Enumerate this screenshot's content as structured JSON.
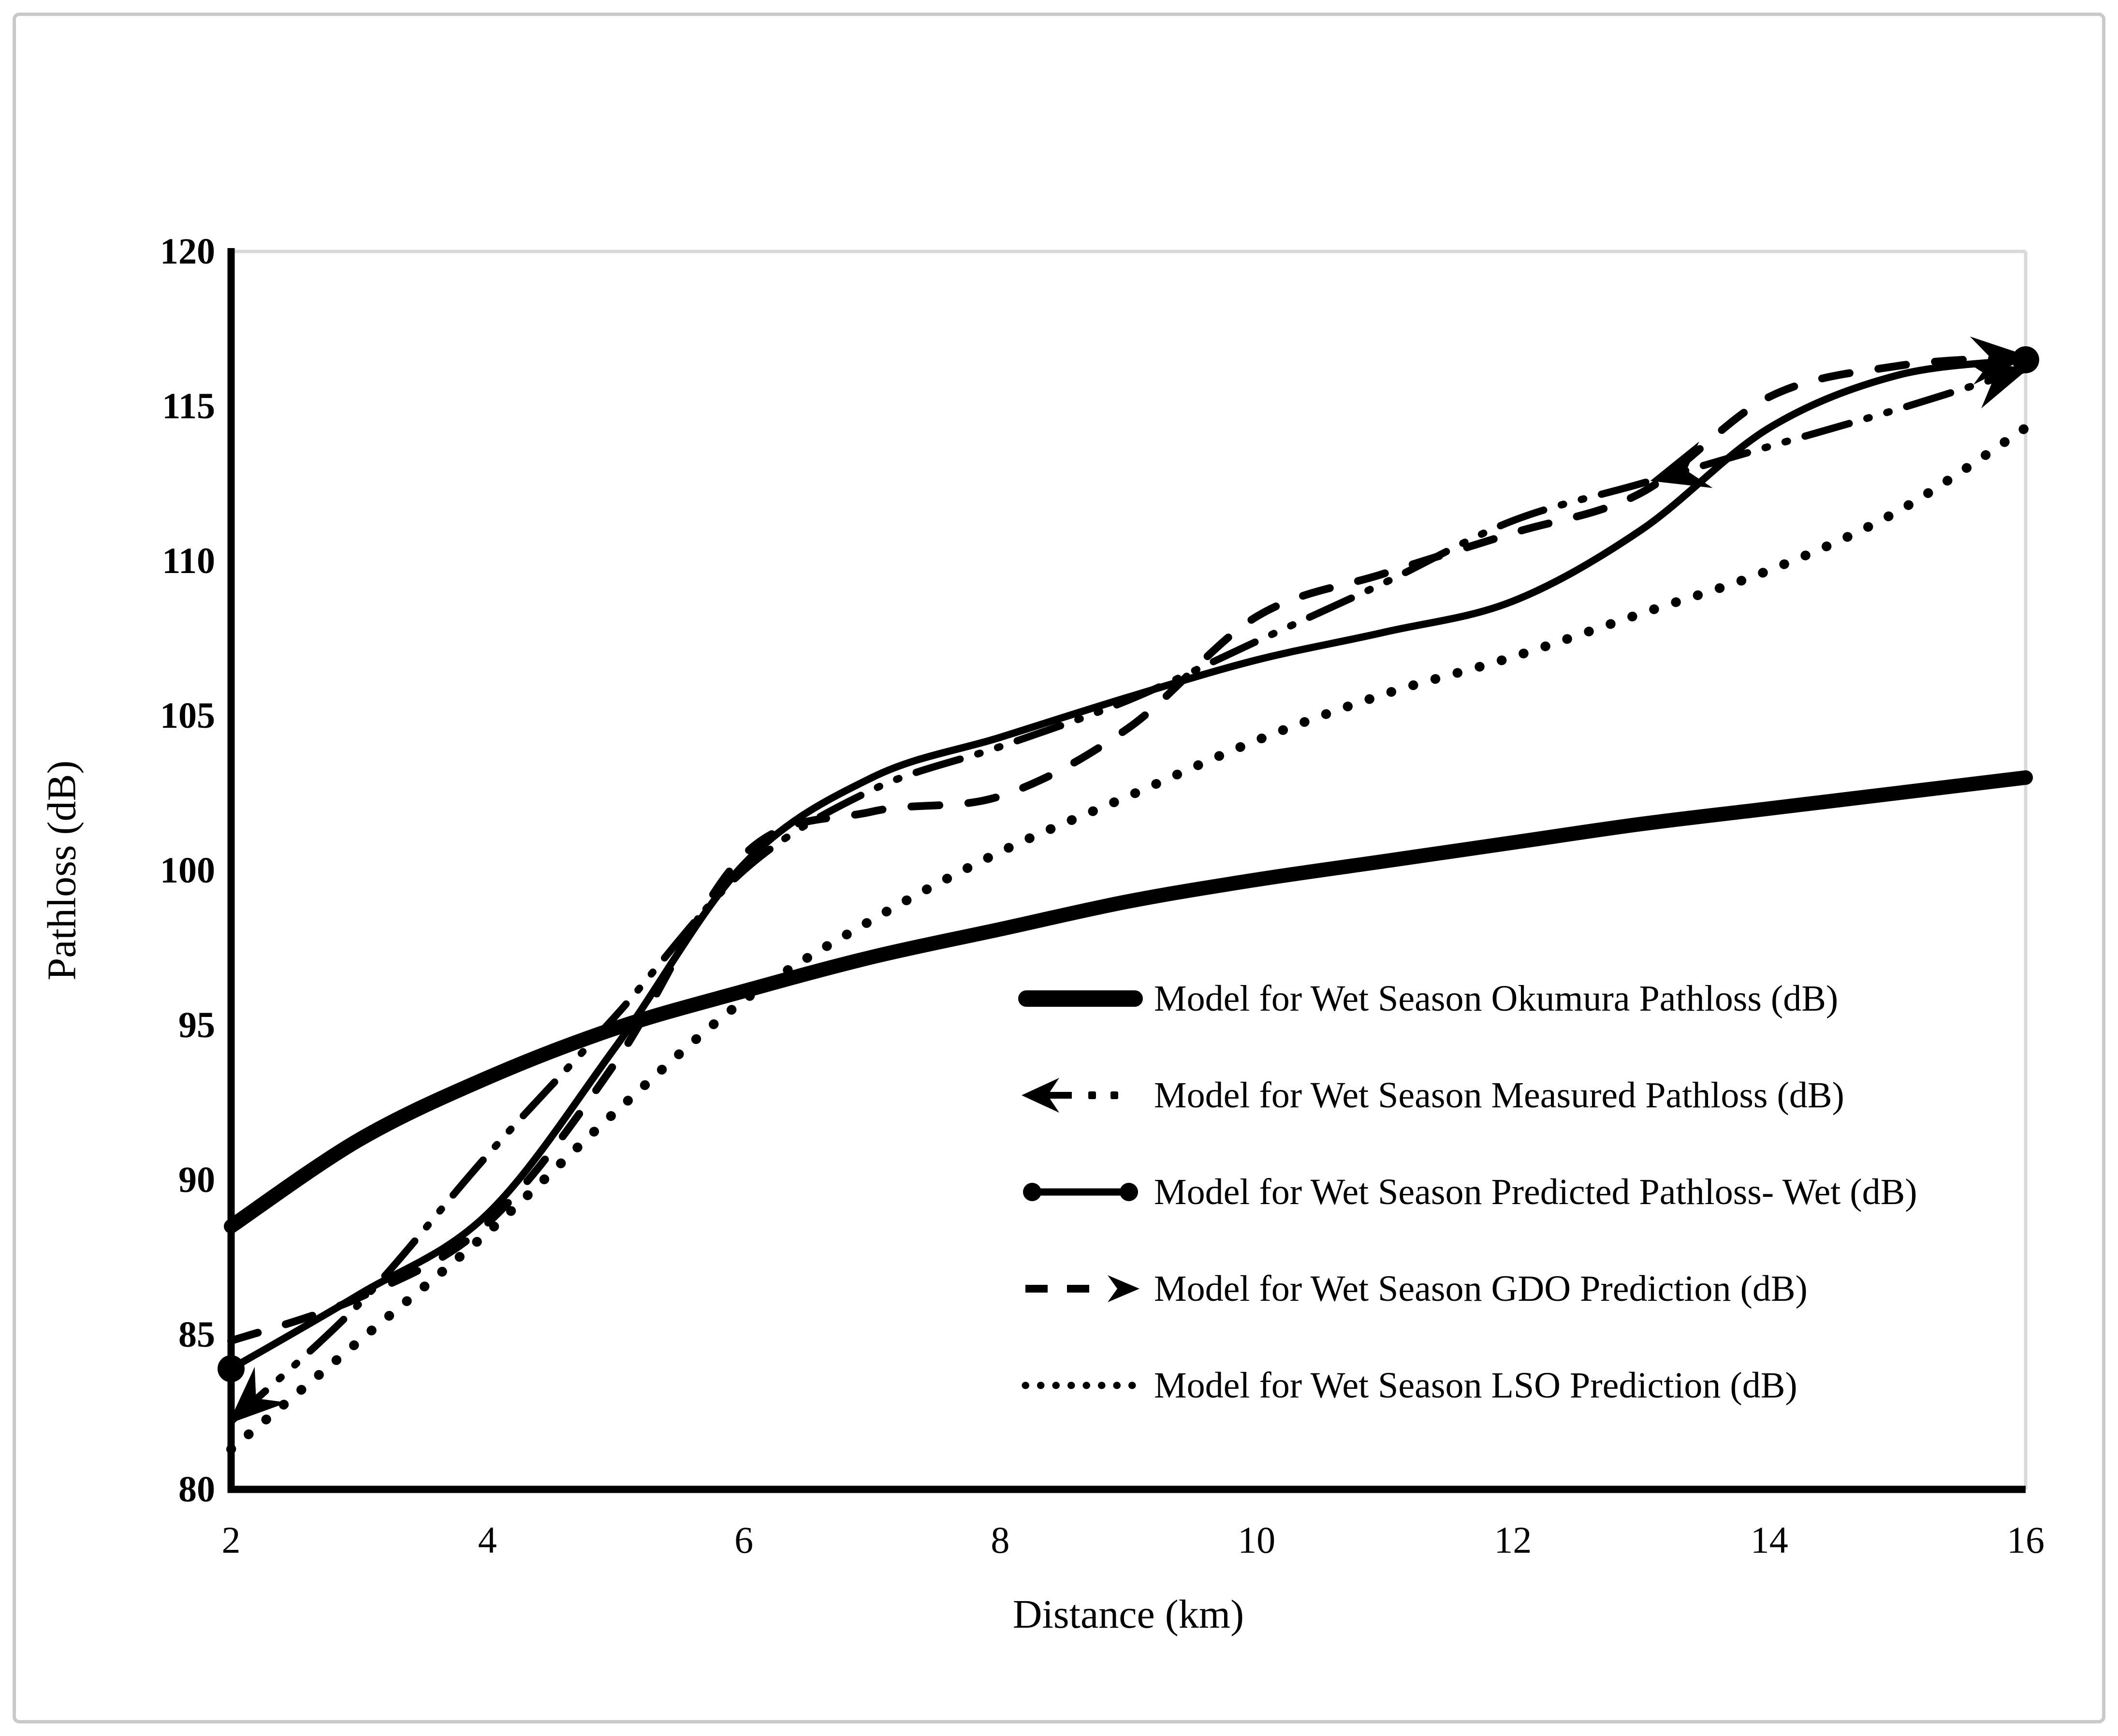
{
  "figure": {
    "background_color": "#ffffff",
    "border_color": "#c9c9c9",
    "axis_color": "#000000",
    "plot_frame_color": "#d9d9d9",
    "series_color": "#000000"
  },
  "chart_data": {
    "type": "line",
    "title": "",
    "xlabel": "Distance (km)",
    "ylabel": "Pathloss (dB)",
    "xlim": [
      2,
      16
    ],
    "ylim": [
      80,
      120
    ],
    "x_ticks": [
      2,
      4,
      6,
      8,
      10,
      12,
      14,
      16
    ],
    "y_ticks": [
      80,
      85,
      90,
      95,
      100,
      105,
      110,
      115,
      120
    ],
    "grid": false,
    "legend_position": "inside-lower-right",
    "x": [
      2,
      3,
      4,
      5,
      6,
      7,
      8,
      9,
      10,
      11,
      12,
      13,
      14,
      15,
      16
    ],
    "series": [
      {
        "name": "Model for Wet Season Okumura Pathloss (dB)",
        "style": "thick-solid",
        "values": [
          88.5,
          91.3,
          93.3,
          94.9,
          96.1,
          97.2,
          98.1,
          99.0,
          99.7,
          100.3,
          100.9,
          101.5,
          102.0,
          102.5,
          103.0
        ]
      },
      {
        "name": "Model for Wet Season Measured Pathloss (dB)",
        "style": "dash-dot-dot-arrows",
        "mid_arrow_at": 13.1,
        "values": [
          82.2,
          86.0,
          90.8,
          95.3,
          100.0,
          102.6,
          104.0,
          105.5,
          107.4,
          109.3,
          111.3,
          112.5,
          113.7,
          114.9,
          116.2
        ]
      },
      {
        "name": "Model for Wet Season Predicted Pathloss- Wet (dB)",
        "style": "solid-circle-markers",
        "values": [
          83.9,
          86.3,
          88.9,
          94.3,
          100.2,
          103.0,
          104.3,
          105.6,
          106.8,
          107.7,
          108.7,
          111.0,
          114.3,
          116.0,
          116.5
        ]
      },
      {
        "name": "Model for Wet Season GDO Prediction (dB)",
        "style": "dashed-arrow",
        "values": [
          84.8,
          86.2,
          88.6,
          93.8,
          100.5,
          101.9,
          102.4,
          104.6,
          108.2,
          109.6,
          110.9,
          112.2,
          115.3,
          116.3,
          116.6
        ]
      },
      {
        "name": "Model for Wet Season LSO Prediction (dB)",
        "style": "dotted",
        "values": [
          81.3,
          84.8,
          88.3,
          92.2,
          95.8,
          98.4,
          100.6,
          102.4,
          104.2,
          105.7,
          106.9,
          108.3,
          109.7,
          111.6,
          114.3
        ]
      }
    ]
  }
}
